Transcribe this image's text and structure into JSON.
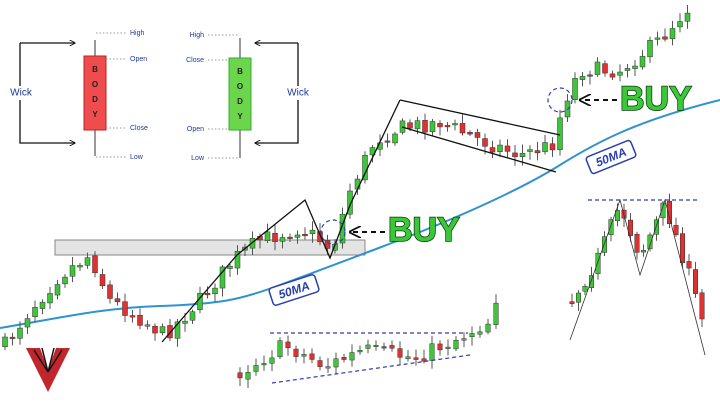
{
  "legend": {
    "bearish": {
      "body": "BODY",
      "wick": "Wick",
      "high": "High",
      "open": "Open",
      "close": "Close",
      "low": "Low"
    },
    "bullish": {
      "body": "BODY",
      "wick": "Wick",
      "high": "High",
      "close": "Close",
      "open": "Open",
      "low": "Low"
    }
  },
  "annotations": {
    "buy_1": "BUY",
    "buy_2": "BUY",
    "ma_1": "50MA",
    "ma_2": "50MA"
  }
}
